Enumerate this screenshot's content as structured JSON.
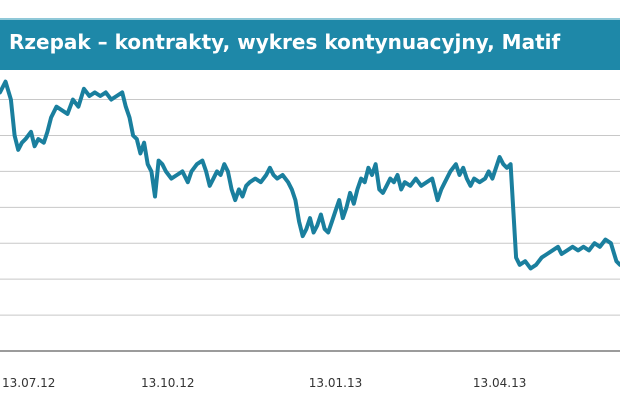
{
  "header": {
    "title": "Rzepak – kontrakty, wykres kontynuacyjny, Matif"
  },
  "colors": {
    "title_bar": "#1e88a8",
    "line": "#1a7f9e",
    "grid": "#c8c8c8",
    "axis": "#7a7a7a"
  },
  "chart_data": {
    "type": "line",
    "title": "Rzepak – kontrakty, wykres kontynuacyjny, Matif",
    "xlabel": "",
    "ylabel": "",
    "grid": true,
    "legend": "none",
    "x_ticks": [
      "13.07.12",
      "13.10.12",
      "13.01.13",
      "13.04.13"
    ],
    "x_range": [
      "2012-07-13",
      "2013-06-18"
    ],
    "y_range": [
      0,
      7.6
    ],
    "y_gridlines": [
      1,
      2,
      3,
      4,
      5,
      6,
      7
    ],
    "series": [
      {
        "color": "#1a7f9e",
        "points": [
          [
            "2012-07-13",
            7.2
          ],
          [
            "2012-07-16",
            7.5
          ],
          [
            "2012-07-19",
            7.0
          ],
          [
            "2012-07-21",
            6.0
          ],
          [
            "2012-07-23",
            5.6
          ],
          [
            "2012-07-25",
            5.8
          ],
          [
            "2012-07-27",
            5.9
          ],
          [
            "2012-07-30",
            6.1
          ],
          [
            "2012-08-01",
            5.7
          ],
          [
            "2012-08-03",
            5.9
          ],
          [
            "2012-08-06",
            5.8
          ],
          [
            "2012-08-08",
            6.1
          ],
          [
            "2012-08-10",
            6.5
          ],
          [
            "2012-08-13",
            6.8
          ],
          [
            "2012-08-16",
            6.7
          ],
          [
            "2012-08-19",
            6.6
          ],
          [
            "2012-08-22",
            7.0
          ],
          [
            "2012-08-25",
            6.8
          ],
          [
            "2012-08-28",
            7.3
          ],
          [
            "2012-08-31",
            7.1
          ],
          [
            "2012-09-03",
            7.2
          ],
          [
            "2012-09-06",
            7.1
          ],
          [
            "2012-09-09",
            7.2
          ],
          [
            "2012-09-12",
            7.0
          ],
          [
            "2012-09-15",
            7.1
          ],
          [
            "2012-09-18",
            7.2
          ],
          [
            "2012-09-20",
            6.8
          ],
          [
            "2012-09-22",
            6.5
          ],
          [
            "2012-09-24",
            6.0
          ],
          [
            "2012-09-26",
            5.9
          ],
          [
            "2012-09-28",
            5.5
          ],
          [
            "2012-09-30",
            5.8
          ],
          [
            "2012-10-02",
            5.2
          ],
          [
            "2012-10-04",
            5.0
          ],
          [
            "2012-10-06",
            4.3
          ],
          [
            "2012-10-08",
            5.3
          ],
          [
            "2012-10-10",
            5.2
          ],
          [
            "2012-10-12",
            5.0
          ],
          [
            "2012-10-15",
            4.8
          ],
          [
            "2012-10-18",
            4.9
          ],
          [
            "2012-10-21",
            5.0
          ],
          [
            "2012-10-24",
            4.7
          ],
          [
            "2012-10-26",
            5.0
          ],
          [
            "2012-10-29",
            5.2
          ],
          [
            "2012-11-01",
            5.3
          ],
          [
            "2012-11-03",
            5.0
          ],
          [
            "2012-11-05",
            4.6
          ],
          [
            "2012-11-07",
            4.8
          ],
          [
            "2012-11-09",
            5.0
          ],
          [
            "2012-11-11",
            4.9
          ],
          [
            "2012-11-13",
            5.2
          ],
          [
            "2012-11-15",
            5.0
          ],
          [
            "2012-11-17",
            4.5
          ],
          [
            "2012-11-19",
            4.2
          ],
          [
            "2012-11-21",
            4.5
          ],
          [
            "2012-11-23",
            4.3
          ],
          [
            "2012-11-25",
            4.6
          ],
          [
            "2012-11-27",
            4.7
          ],
          [
            "2012-11-30",
            4.8
          ],
          [
            "2012-12-03",
            4.7
          ],
          [
            "2012-12-06",
            4.9
          ],
          [
            "2012-12-08",
            5.1
          ],
          [
            "2012-12-10",
            4.9
          ],
          [
            "2012-12-12",
            4.8
          ],
          [
            "2012-12-15",
            4.9
          ],
          [
            "2012-12-18",
            4.7
          ],
          [
            "2012-12-20",
            4.5
          ],
          [
            "2012-12-22",
            4.2
          ],
          [
            "2012-12-24",
            3.6
          ],
          [
            "2012-12-26",
            3.2
          ],
          [
            "2012-12-28",
            3.4
          ],
          [
            "2012-12-30",
            3.7
          ],
          [
            "2013-01-01",
            3.3
          ],
          [
            "2013-01-03",
            3.5
          ],
          [
            "2013-01-05",
            3.8
          ],
          [
            "2013-01-07",
            3.4
          ],
          [
            "2013-01-09",
            3.3
          ],
          [
            "2013-01-11",
            3.6
          ],
          [
            "2013-01-13",
            3.9
          ],
          [
            "2013-01-15",
            4.2
          ],
          [
            "2013-01-17",
            3.7
          ],
          [
            "2013-01-19",
            4.0
          ],
          [
            "2013-01-21",
            4.4
          ],
          [
            "2013-01-23",
            4.1
          ],
          [
            "2013-01-25",
            4.5
          ],
          [
            "2013-01-27",
            4.8
          ],
          [
            "2013-01-29",
            4.7
          ],
          [
            "2013-01-31",
            5.1
          ],
          [
            "2013-02-02",
            4.9
          ],
          [
            "2013-02-04",
            5.2
          ],
          [
            "2013-02-06",
            4.5
          ],
          [
            "2013-02-08",
            4.4
          ],
          [
            "2013-02-10",
            4.6
          ],
          [
            "2013-02-12",
            4.8
          ],
          [
            "2013-02-14",
            4.7
          ],
          [
            "2013-02-16",
            4.9
          ],
          [
            "2013-02-18",
            4.5
          ],
          [
            "2013-02-20",
            4.7
          ],
          [
            "2013-02-23",
            4.6
          ],
          [
            "2013-02-26",
            4.8
          ],
          [
            "2013-03-01",
            4.6
          ],
          [
            "2013-03-04",
            4.7
          ],
          [
            "2013-03-07",
            4.8
          ],
          [
            "2013-03-10",
            4.2
          ],
          [
            "2013-03-12",
            4.5
          ],
          [
            "2013-03-14",
            4.7
          ],
          [
            "2013-03-17",
            5.0
          ],
          [
            "2013-03-20",
            5.2
          ],
          [
            "2013-03-22",
            4.9
          ],
          [
            "2013-03-24",
            5.1
          ],
          [
            "2013-03-26",
            4.8
          ],
          [
            "2013-03-28",
            4.6
          ],
          [
            "2013-03-30",
            4.8
          ],
          [
            "2013-04-02",
            4.7
          ],
          [
            "2013-04-05",
            4.8
          ],
          [
            "2013-04-07",
            5.0
          ],
          [
            "2013-04-09",
            4.8
          ],
          [
            "2013-04-11",
            5.1
          ],
          [
            "2013-04-13",
            5.4
          ],
          [
            "2013-04-15",
            5.2
          ],
          [
            "2013-04-17",
            5.1
          ],
          [
            "2013-04-19",
            5.2
          ],
          [
            "2013-04-22",
            2.6
          ],
          [
            "2013-04-24",
            2.4
          ],
          [
            "2013-04-27",
            2.5
          ],
          [
            "2013-04-30",
            2.3
          ],
          [
            "2013-05-03",
            2.4
          ],
          [
            "2013-05-06",
            2.6
          ],
          [
            "2013-05-09",
            2.7
          ],
          [
            "2013-05-12",
            2.8
          ],
          [
            "2013-05-15",
            2.9
          ],
          [
            "2013-05-17",
            2.7
          ],
          [
            "2013-05-20",
            2.8
          ],
          [
            "2013-05-23",
            2.9
          ],
          [
            "2013-05-26",
            2.8
          ],
          [
            "2013-05-29",
            2.9
          ],
          [
            "2013-06-01",
            2.8
          ],
          [
            "2013-06-04",
            3.0
          ],
          [
            "2013-06-07",
            2.9
          ],
          [
            "2013-06-10",
            3.1
          ],
          [
            "2013-06-13",
            3.0
          ],
          [
            "2013-06-16",
            2.5
          ],
          [
            "2013-06-18",
            2.4
          ]
        ]
      }
    ]
  }
}
